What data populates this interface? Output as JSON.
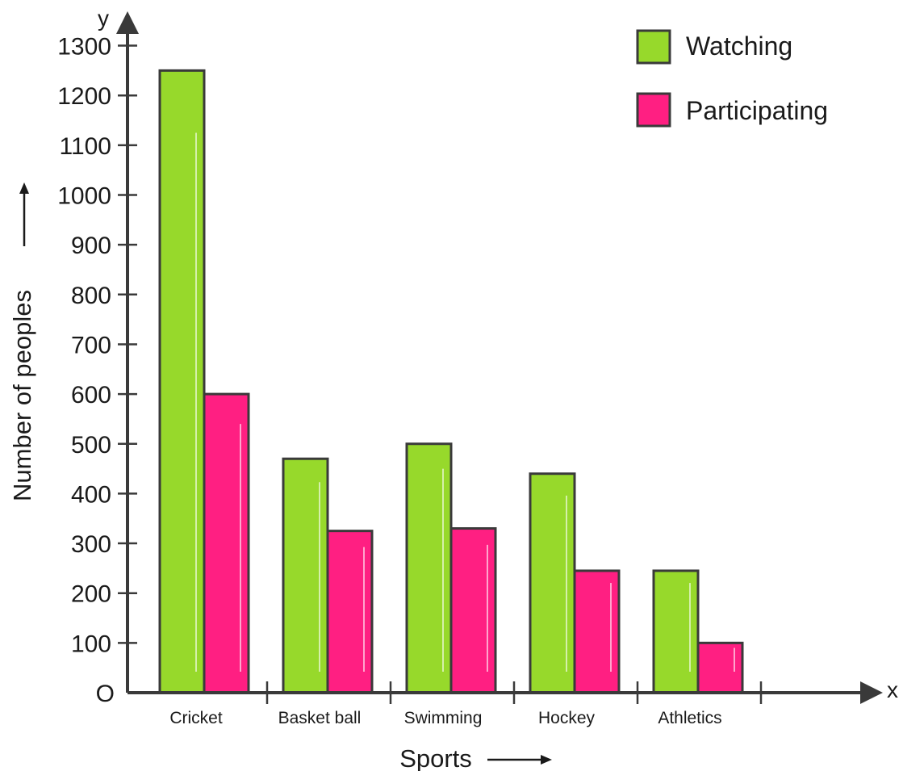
{
  "chart_data": {
    "type": "bar",
    "categories": [
      "Cricket",
      "Basket ball",
      "Swimming",
      "Hockey",
      "Athletics"
    ],
    "series": [
      {
        "name": "Watching",
        "values": [
          1250,
          470,
          500,
          440,
          245
        ],
        "color": "#97d92b"
      },
      {
        "name": "Participating",
        "values": [
          600,
          325,
          330,
          245,
          100
        ],
        "color": "#ff1f82"
      }
    ],
    "yticks": [
      100,
      200,
      300,
      400,
      500,
      600,
      700,
      800,
      900,
      1000,
      1100,
      1200,
      1300
    ],
    "ylim": [
      0,
      1300
    ],
    "xlabel": "Sports",
    "ylabel": "Number of peoples",
    "x_axis_letter": "x",
    "y_axis_letter": "y",
    "origin_label": "O",
    "legend_position": "top-right",
    "grid": false
  }
}
